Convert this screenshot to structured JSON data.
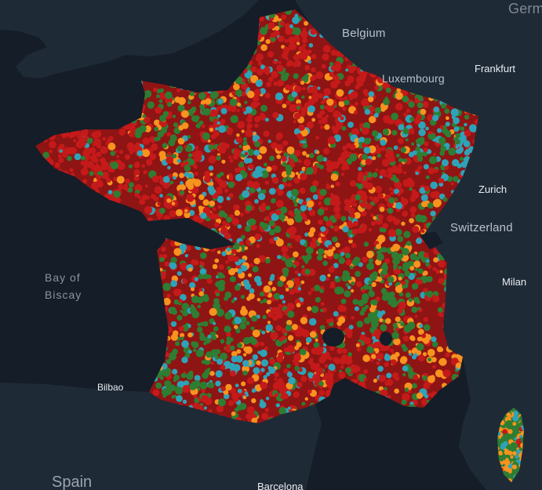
{
  "map": {
    "legend_colors": {
      "red": "#c51a1a",
      "green": "#2e7d32",
      "orange": "#f7931e",
      "teal": "#2ea3b8"
    },
    "background": {
      "water": "#141d28",
      "land_neighbours": "#1f2a37"
    },
    "labels": {
      "germany": "Germ",
      "belgium": "Belgium",
      "luxembourg": "Luxembourg",
      "frankfurt": "Frankfurt",
      "zurich": "Zurich",
      "switzerland": "Switzerland",
      "milan": "Milan",
      "bay_of": "Bay of",
      "biscay": "Biscay",
      "bilbao": "Bilbao",
      "spain": "Spain",
      "barcelona": "Barcelona"
    }
  }
}
